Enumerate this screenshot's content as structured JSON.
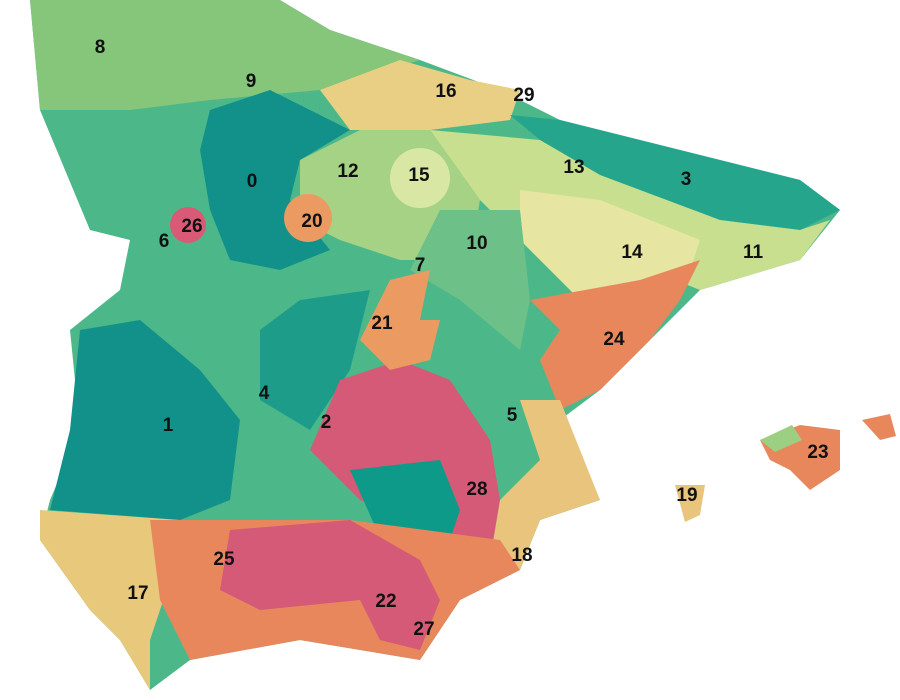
{
  "regions": [
    {
      "label": "0"
    },
    {
      "label": "1"
    },
    {
      "label": "2"
    },
    {
      "label": "3"
    },
    {
      "label": "4"
    },
    {
      "label": "5"
    },
    {
      "label": "6"
    },
    {
      "label": "7"
    },
    {
      "label": "8"
    },
    {
      "label": "9"
    },
    {
      "label": "10"
    },
    {
      "label": "11"
    },
    {
      "label": "12"
    },
    {
      "label": "13"
    },
    {
      "label": "14"
    },
    {
      "label": "15"
    },
    {
      "label": "16"
    },
    {
      "label": "17"
    },
    {
      "label": "18"
    },
    {
      "label": "19"
    },
    {
      "label": "20"
    },
    {
      "label": "21"
    },
    {
      "label": "22"
    },
    {
      "label": "23"
    },
    {
      "label": "24"
    },
    {
      "label": "25"
    },
    {
      "label": "26"
    },
    {
      "label": "27"
    },
    {
      "label": "28"
    },
    {
      "label": "29"
    }
  ]
}
